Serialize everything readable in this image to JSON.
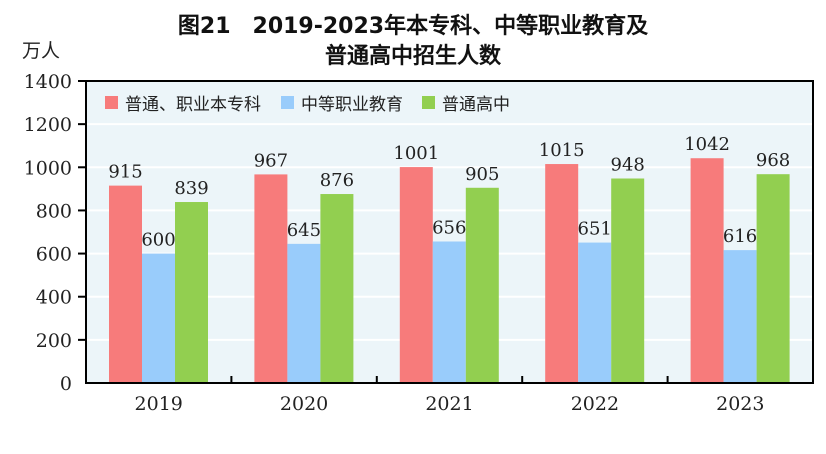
{
  "chart_data": {
    "type": "bar",
    "title_line1": "图21　2019-2023年本专科、中等职业教育及",
    "title_line2": "普通高中招生人数",
    "ylabel": "万人",
    "xlabel": "",
    "ylim": [
      0,
      1400
    ],
    "yticks": [
      "0",
      "200",
      "400",
      "600",
      "800",
      "1000",
      "1200",
      "1400"
    ],
    "categories": [
      "2019",
      "2020",
      "2021",
      "2022",
      "2023"
    ],
    "grid": true,
    "legend_position": "top-left",
    "series": [
      {
        "name": "普通、职业本专科",
        "color": "#f77b7b",
        "values": [
          915,
          967,
          1001,
          1015,
          1042
        ]
      },
      {
        "name": "中等职业教育",
        "color": "#99ccfb",
        "values": [
          600,
          645,
          656,
          651,
          616
        ]
      },
      {
        "name": "普通高中",
        "color": "#92cf50",
        "values": [
          839,
          876,
          905,
          948,
          968
        ]
      }
    ],
    "plot_background": "#ecf5f9"
  }
}
